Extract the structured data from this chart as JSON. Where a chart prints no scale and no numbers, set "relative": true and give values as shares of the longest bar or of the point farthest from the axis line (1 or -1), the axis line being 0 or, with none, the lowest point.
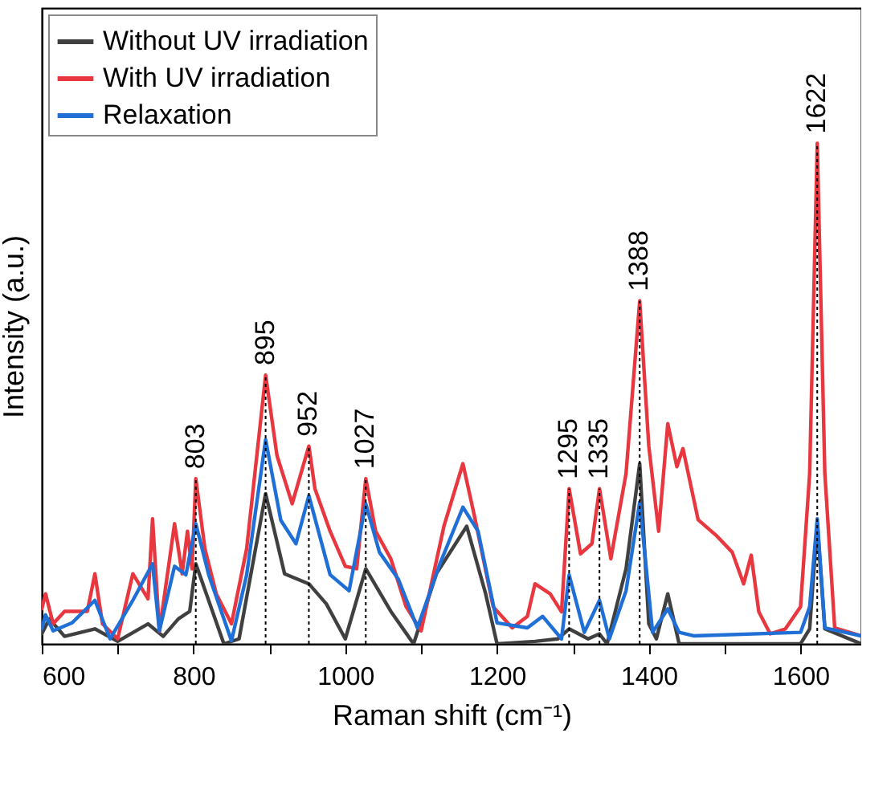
{
  "chart_data": {
    "type": "line",
    "relative": true,
    "xlabel": "Raman shift (cm⁻¹)",
    "ylabel": "Intensity (a.u.)",
    "legend": "top left",
    "xlim": [
      600,
      1680
    ],
    "xticks": [
      600,
      {
        "value": 700,
        "label": null
      },
      800,
      {
        "value": 900,
        "label": null
      },
      1000,
      {
        "value": 1100,
        "label": null
      },
      1200,
      {
        "value": 1300,
        "label": null
      },
      1400,
      {
        "value": 1500,
        "label": null
      },
      1600
    ],
    "series": [
      {
        "name": "Without UV irradiation",
        "color": "#404040",
        "x": [
          600,
          610,
          630,
          670,
          700,
          740,
          760,
          780,
          795,
          803,
          840,
          860,
          895,
          920,
          952,
          975,
          1000,
          1027,
          1060,
          1090,
          1120,
          1160,
          1185,
          1200,
          1250,
          1280,
          1295,
          1320,
          1335,
          1345,
          1370,
          1388,
          1400,
          1410,
          1425,
          1440,
          1600,
          1612,
          1622,
          1632,
          1680
        ],
        "values": [
          0.02,
          0.05,
          0.015,
          0.03,
          0.005,
          0.04,
          0.015,
          0.05,
          0.065,
          0.16,
          0,
          0.01,
          0.3,
          0.14,
          0.12,
          0.08,
          0.01,
          0.15,
          0.065,
          0,
          0.14,
          0.235,
          0.1,
          0,
          0.005,
          0.01,
          0.03,
          0.01,
          0.02,
          0,
          0.15,
          0.36,
          0.04,
          0.01,
          0.1,
          0,
          0,
          0.03,
          0.24,
          0.03,
          0
        ]
      },
      {
        "name": "With UV irradiation",
        "color": "#e8373f",
        "x": [
          600,
          605,
          615,
          630,
          660,
          670,
          680,
          700,
          720,
          740,
          746,
          755,
          775,
          785,
          792,
          798,
          803,
          815,
          830,
          850,
          870,
          895,
          910,
          930,
          952,
          960,
          980,
          1000,
          1015,
          1027,
          1040,
          1060,
          1080,
          1100,
          1130,
          1155,
          1170,
          1195,
          1220,
          1240,
          1250,
          1270,
          1285,
          1295,
          1310,
          1325,
          1335,
          1350,
          1370,
          1388,
          1400,
          1413,
          1425,
          1437,
          1445,
          1465,
          1490,
          1510,
          1525,
          1535,
          1545,
          1560,
          1580,
          1600,
          1612,
          1622,
          1632,
          1645,
          1680
        ],
        "values": [
          0.07,
          0.1,
          0.04,
          0.065,
          0.065,
          0.14,
          0.04,
          0.01,
          0.14,
          0.09,
          0.25,
          0.025,
          0.24,
          0.14,
          0.225,
          0.15,
          0.33,
          0.19,
          0.1,
          0.04,
          0.19,
          0.537,
          0.376,
          0.28,
          0.395,
          0.31,
          0.225,
          0.155,
          0.15,
          0.33,
          0.225,
          0.17,
          0.075,
          0.026,
          0.235,
          0.36,
          0.257,
          0.074,
          0.032,
          0.055,
          0.12,
          0.1,
          0.064,
          0.31,
          0.18,
          0.2,
          0.31,
          0.17,
          0.34,
          0.685,
          0.395,
          0.225,
          0.44,
          0.354,
          0.39,
          0.248,
          0.215,
          0.183,
          0.12,
          0.177,
          0.064,
          0.02,
          0.03,
          0.074,
          0.34,
          1,
          0.34,
          0.032,
          0.016
        ]
      },
      {
        "name": "Relaxation",
        "color": "#1f6fd6",
        "x": [
          600,
          605,
          615,
          640,
          670,
          690,
          720,
          746,
          755,
          775,
          790,
          803,
          820,
          850,
          870,
          895,
          915,
          935,
          952,
          980,
          1005,
          1027,
          1045,
          1070,
          1095,
          1125,
          1155,
          1175,
          1200,
          1240,
          1260,
          1285,
          1295,
          1315,
          1335,
          1348,
          1370,
          1388,
          1405,
          1425,
          1440,
          1460,
          1600,
          1612,
          1622,
          1632,
          1680
        ],
        "values": [
          0.03,
          0.058,
          0.026,
          0.042,
          0.087,
          0.01,
          0.087,
          0.16,
          0.026,
          0.155,
          0.138,
          0.24,
          0.138,
          0.006,
          0.138,
          0.408,
          0.247,
          0.2,
          0.296,
          0.138,
          0.106,
          0.28,
          0.183,
          0.129,
          0.032,
          0.161,
          0.273,
          0.225,
          0.042,
          0.032,
          0.055,
          0.01,
          0.138,
          0.023,
          0.087,
          0.01,
          0.106,
          0.283,
          0.023,
          0.07,
          0.023,
          0.016,
          0.023,
          0.074,
          0.25,
          0.032,
          0.016
        ]
      }
    ],
    "ref_lines": [
      {
        "axis": "x",
        "value": 803,
        "label": "803",
        "color": "#000000",
        "line_style": "dotted"
      },
      {
        "axis": "x",
        "value": 895,
        "label": "895",
        "color": "#000000",
        "line_style": "dotted"
      },
      {
        "axis": "x",
        "value": 952,
        "label": "952",
        "color": "#000000",
        "line_style": "dotted"
      },
      {
        "axis": "x",
        "value": 1027,
        "label": "1027",
        "color": "#000000",
        "line_style": "dotted"
      },
      {
        "axis": "x",
        "value": 1295,
        "label": "1295",
        "color": "#000000",
        "line_style": "dotted"
      },
      {
        "axis": "x",
        "value": 1335,
        "label": "1335",
        "color": "#000000",
        "line_style": "dotted"
      },
      {
        "axis": "x",
        "value": 1388,
        "label": "1388",
        "color": "#000000",
        "line_style": "dotted"
      },
      {
        "axis": "x",
        "value": 1622,
        "label": "1622",
        "color": "#000000",
        "line_style": "dotted"
      }
    ]
  }
}
